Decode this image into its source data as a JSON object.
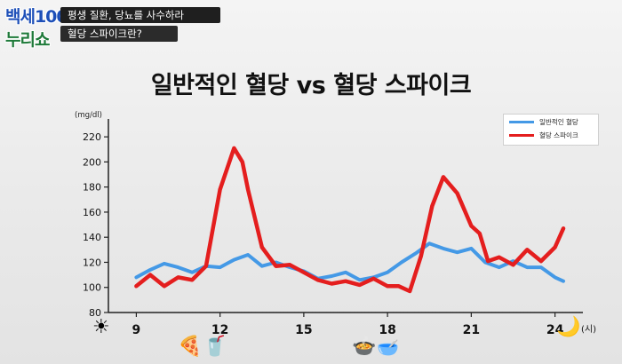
{
  "show": {
    "logo_line1": "백세100",
    "logo_line2": "누리쇼",
    "caption_top": "평생 질환, 당뇨를 사수하라",
    "caption_bottom": "혈당 스파이크란?"
  },
  "colors": {
    "normal": "#4499e6",
    "spike": "#e41e1e"
  },
  "icons": {
    "sun": "sun-icon",
    "moon": "moon-icon",
    "pizza": "pizza-icon",
    "drink": "drink-icon",
    "meal": "meal-bowls-icon"
  },
  "chart_data": {
    "type": "line",
    "title": "일반적인 혈당 vs 혈당 스파이크",
    "ylabel": "(mg/dl)",
    "xlabel": "(시)",
    "ylim": [
      80,
      230
    ],
    "xlim": [
      8,
      25
    ],
    "yticks": [
      80,
      100,
      120,
      140,
      160,
      180,
      200,
      220
    ],
    "xticks": [
      9,
      12,
      15,
      18,
      21,
      24
    ],
    "grid": false,
    "legend_position": "top-right",
    "series": [
      {
        "name": "일반적인 혈당",
        "x": [
          9,
          9.5,
          10,
          10.5,
          11,
          11.5,
          12,
          12.5,
          13,
          13.5,
          14,
          14.5,
          15,
          15.5,
          16,
          16.5,
          17,
          17.5,
          18,
          18.5,
          19,
          19.5,
          20,
          20.5,
          21,
          21.5,
          22,
          22.5,
          23,
          23.5,
          24,
          24.3
        ],
        "values": [
          108,
          114,
          119,
          116,
          112,
          117,
          116,
          122,
          126,
          117,
          120,
          116,
          113,
          107,
          109,
          112,
          106,
          108,
          112,
          120,
          127,
          135,
          131,
          128,
          131,
          120,
          116,
          121,
          116,
          116,
          108,
          105
        ]
      },
      {
        "name": "혈당 스파이크",
        "x": [
          9,
          9.5,
          10,
          10.5,
          11,
          11.5,
          12,
          12.5,
          12.8,
          13,
          13.5,
          14,
          14.5,
          15,
          15.5,
          16,
          16.5,
          17,
          17.5,
          18,
          18.4,
          18.8,
          19.2,
          19.6,
          20,
          20.5,
          21,
          21.3,
          21.6,
          22,
          22.5,
          23,
          23.5,
          24,
          24.3
        ],
        "values": [
          101,
          110,
          101,
          108,
          106,
          117,
          178,
          211,
          200,
          178,
          132,
          117,
          118,
          112,
          106,
          103,
          105,
          102,
          107,
          101,
          101,
          97,
          125,
          165,
          188,
          175,
          149,
          143,
          121,
          124,
          118,
          130,
          121,
          132,
          147
        ]
      }
    ]
  }
}
